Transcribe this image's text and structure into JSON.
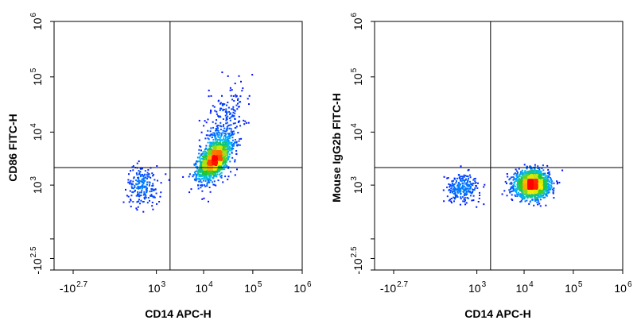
{
  "chart_data": [
    {
      "type": "scatter",
      "subtype": "flow-cytometry-density-dot-plot",
      "xlabel": "CD14 APC-H",
      "ylabel": "CD86 FITC-H",
      "x_scale": "biexponential",
      "y_scale": "biexponential",
      "x_ticks": [
        {
          "value": -500,
          "base": "-10",
          "exp": "2.7"
        },
        {
          "value": 1000,
          "base": "10",
          "exp": "3"
        },
        {
          "value": 10000,
          "base": "10",
          "exp": "4"
        },
        {
          "value": 100000,
          "base": "10",
          "exp": "5"
        },
        {
          "value": 1000000,
          "base": "10",
          "exp": "6"
        }
      ],
      "y_ticks": [
        {
          "value": -316,
          "base": "-10",
          "exp": "2.5"
        },
        {
          "value": 1000,
          "base": "10",
          "exp": "3"
        },
        {
          "value": 10000,
          "base": "10",
          "exp": "4"
        },
        {
          "value": 100000,
          "base": "10",
          "exp": "5"
        },
        {
          "value": 1000000,
          "base": "10",
          "exp": "6"
        }
      ],
      "gate": {
        "x": 2000,
        "y": 2200
      },
      "populations": [
        {
          "name": "main",
          "x_center": 16000,
          "y_center": 3200,
          "x_spread_decades": 0.16,
          "y_spread_decades": 0.18,
          "count": 1600,
          "correlation": 0.55
        },
        {
          "name": "upper tail",
          "x_center": 22000,
          "y_center": 9000,
          "x_spread_decades": 0.22,
          "y_spread_decades": 0.45,
          "count": 380,
          "correlation": 0.5
        },
        {
          "name": "low",
          "x_center": 450,
          "y_center": 1000,
          "x_spread_decades": 0.22,
          "y_spread_decades": 0.2,
          "count": 210,
          "correlation": 0
        }
      ]
    },
    {
      "type": "scatter",
      "subtype": "flow-cytometry-density-dot-plot",
      "xlabel": "CD14 APC-H",
      "ylabel": "Mouse IgG2b FITC-H",
      "x_scale": "biexponential",
      "y_scale": "biexponential",
      "x_ticks": [
        {
          "value": -500,
          "base": "-10",
          "exp": "2.7"
        },
        {
          "value": 1000,
          "base": "10",
          "exp": "3"
        },
        {
          "value": 10000,
          "base": "10",
          "exp": "4"
        },
        {
          "value": 100000,
          "base": "10",
          "exp": "5"
        },
        {
          "value": 1000000,
          "base": "10",
          "exp": "6"
        }
      ],
      "y_ticks": [
        {
          "value": -316,
          "base": "-10",
          "exp": "2.5"
        },
        {
          "value": 1000,
          "base": "10",
          "exp": "3"
        },
        {
          "value": 10000,
          "base": "10",
          "exp": "4"
        },
        {
          "value": 100000,
          "base": "10",
          "exp": "5"
        },
        {
          "value": 1000000,
          "base": "10",
          "exp": "6"
        }
      ],
      "gate": {
        "x": 2000,
        "y": 2200
      },
      "populations": [
        {
          "name": "main",
          "x_center": 14000,
          "y_center": 1050,
          "x_spread_decades": 0.17,
          "y_spread_decades": 0.13,
          "count": 1900,
          "correlation": 0
        },
        {
          "name": "low",
          "x_center": 420,
          "y_center": 900,
          "x_spread_decades": 0.22,
          "y_spread_decades": 0.14,
          "count": 240,
          "correlation": 0
        }
      ]
    }
  ],
  "colors": {
    "density_low": "#0000ff",
    "density_mid_low": "#00bfff",
    "density_mid": "#22cc22",
    "density_mid_high": "#ffff00",
    "density_high": "#ff0000",
    "axis": "#000000",
    "background": "#ffffff"
  }
}
